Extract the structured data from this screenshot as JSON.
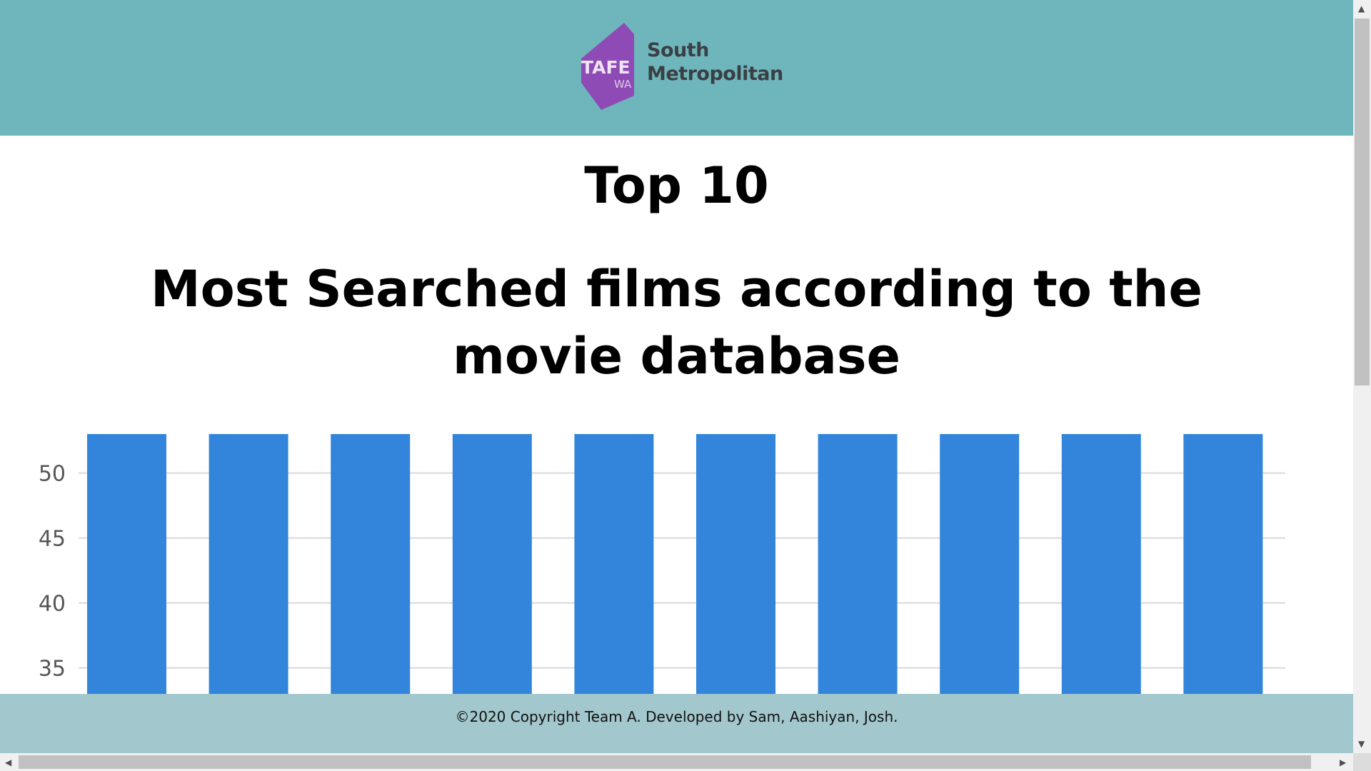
{
  "header": {
    "logo": {
      "mark_text": "TAFE",
      "mark_subtext": "WA",
      "name_line1": "South",
      "name_line2": "Metropolitan",
      "mark_color": "#8e4bb5",
      "background": "#6fb6bc"
    }
  },
  "main": {
    "title": "Top 10",
    "subtitle": "Most Searched films according to the movie database"
  },
  "chart_data": {
    "type": "bar",
    "values": [
      53,
      53,
      53,
      53,
      53,
      53,
      53,
      53,
      53,
      53
    ],
    "ylim": [
      33,
      55
    ],
    "yticks": [
      35,
      40,
      45,
      50
    ],
    "bar_color": "#3285db",
    "grid": true
  },
  "footer": {
    "text": "©2020 Copyright Team A. Developed by Sam, Aashiyan, Josh."
  },
  "scrollbars": {
    "up_arrow": "▲",
    "down_arrow": "▼",
    "left_arrow": "◀",
    "right_arrow": "▶"
  }
}
